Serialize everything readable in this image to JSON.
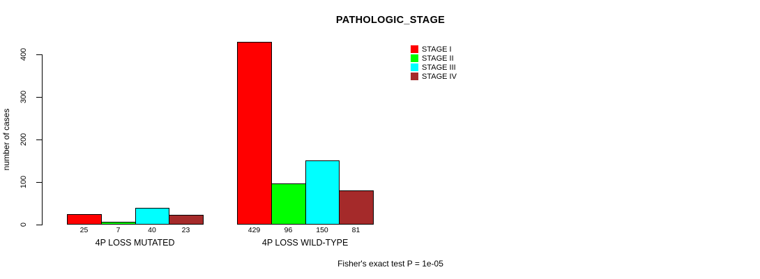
{
  "chart_data": {
    "type": "bar",
    "title": "PATHOLOGIC_STAGE",
    "xlabel": "",
    "ylabel": "number of cases",
    "ylim": [
      0,
      400
    ],
    "yticks": [
      0,
      100,
      200,
      300,
      400
    ],
    "grid": false,
    "legend_position": "inside-top-right",
    "series": [
      {
        "name": "STAGE I",
        "color": "#FF0000"
      },
      {
        "name": "STAGE II",
        "color": "#00FF00"
      },
      {
        "name": "STAGE III",
        "color": "#00FFFF"
      },
      {
        "name": "STAGE IV",
        "color": "#A52A2A"
      }
    ],
    "categories": [
      "4P LOSS MUTATED",
      "4P LOSS WILD-TYPE"
    ],
    "groups": [
      {
        "label": "4P LOSS MUTATED",
        "values": [
          25,
          7,
          40,
          23
        ]
      },
      {
        "label": "4P LOSS WILD-TYPE",
        "values": [
          429,
          96,
          150,
          81
        ]
      }
    ],
    "bar_value_labels_shown": true
  },
  "footnote": "Fisher's exact test P = 1e-05"
}
